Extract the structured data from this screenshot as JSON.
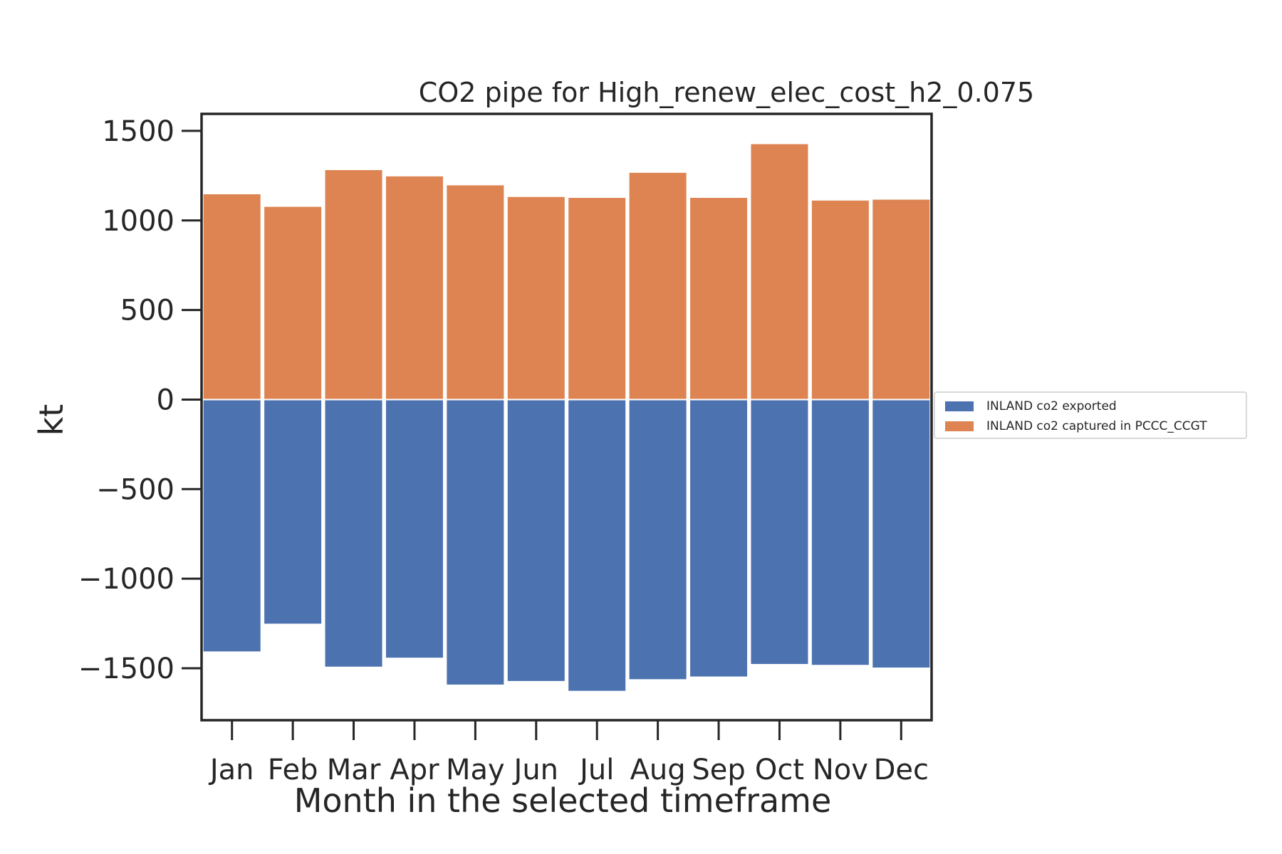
{
  "chart_data": {
    "type": "bar",
    "stacked": true,
    "title": "CO2 pipe for High_renew_elec_cost_h2_0.075",
    "xlabel": "Month in the selected timeframe",
    "ylabel": "kt",
    "categories": [
      "Jan",
      "Feb",
      "Mar",
      "Apr",
      "May",
      "Jun",
      "Jul",
      "Aug",
      "Sep",
      "Oct",
      "Nov",
      "Dec"
    ],
    "series": [
      {
        "name": "INLAND co2 exported",
        "color": "#4c72b0",
        "values": [
          -1410,
          -1255,
          -1495,
          -1445,
          -1595,
          -1575,
          -1630,
          -1565,
          -1550,
          -1480,
          -1485,
          -1500
        ]
      },
      {
        "name": "INLAND co2 captured in PCCC_CCGT",
        "color": "#dd8452",
        "values": [
          1150,
          1080,
          1285,
          1250,
          1200,
          1135,
          1130,
          1270,
          1130,
          1430,
          1115,
          1120
        ]
      }
    ],
    "ylim": [
      -1790,
      1595
    ],
    "yticks": [
      -1500,
      -1000,
      -500,
      0,
      500,
      1000,
      1500
    ],
    "ytick_labels": [
      "−1500",
      "−1000",
      "−500",
      "0",
      "500",
      "1000",
      "1500"
    ],
    "grid": false,
    "legend_position": "right"
  }
}
